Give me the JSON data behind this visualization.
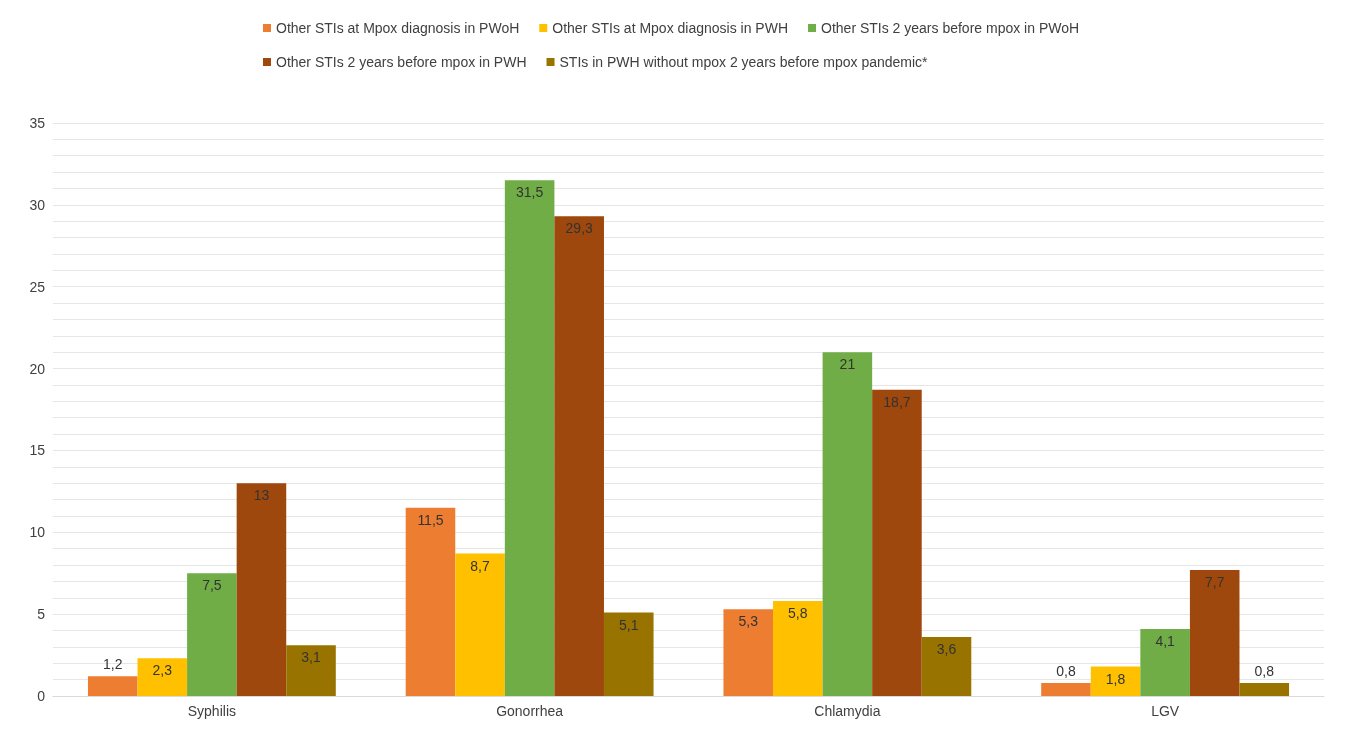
{
  "chart_data": {
    "type": "bar",
    "categories": [
      "Syphilis",
      "Gonorrhea",
      "Chlamydia",
      "LGV"
    ],
    "series": [
      {
        "name": "Other STIs at Mpox diagnosis in PWoH",
        "color": "#ed7d31",
        "values": [
          1.2,
          11.5,
          5.3,
          0.8
        ],
        "value_labels": [
          "1,2",
          "11,5",
          "5,3",
          "0,8"
        ]
      },
      {
        "name": "Other STIs at Mpox diagnosis in PWH",
        "color": "#ffc000",
        "values": [
          2.3,
          8.7,
          5.8,
          1.8
        ],
        "value_labels": [
          "2,3",
          "8,7",
          "5,8",
          "1,8"
        ]
      },
      {
        "name": "Other STIs 2 years before mpox in PWoH",
        "color": "#70ad47",
        "values": [
          7.5,
          31.5,
          21,
          4.1
        ],
        "value_labels": [
          "7,5",
          "31,5",
          "21",
          "4,1"
        ]
      },
      {
        "name": "Other STIs 2 years before mpox in PWH",
        "color": "#9e480e",
        "values": [
          13,
          29.3,
          18.7,
          7.7
        ],
        "value_labels": [
          "13",
          "29,3",
          "18,7",
          "7,7"
        ]
      },
      {
        "name": "STIs in PWH without mpox 2 years before mpox pandemic*",
        "color": "#997300",
        "values": [
          3.1,
          5.1,
          3.6,
          0.8
        ],
        "value_labels": [
          "3,1",
          "5,1",
          "3,6",
          "0,8"
        ]
      }
    ],
    "ylim": [
      0,
      35
    ],
    "yticks": [
      0,
      {
        "value": 1,
        "label": null
      },
      {
        "value": 2,
        "label": null
      },
      {
        "value": 3,
        "label": null
      },
      {
        "value": 4,
        "label": null
      },
      5,
      {
        "value": 6,
        "label": null
      },
      {
        "value": 7,
        "label": null
      },
      {
        "value": 8,
        "label": null
      },
      {
        "value": 9,
        "label": null
      },
      10,
      {
        "value": 11,
        "label": null
      },
      {
        "value": 12,
        "label": null
      },
      {
        "value": 13,
        "label": null
      },
      {
        "value": 14,
        "label": null
      },
      15,
      {
        "value": 16,
        "label": null
      },
      {
        "value": 17,
        "label": null
      },
      {
        "value": 18,
        "label": null
      },
      {
        "value": 19,
        "label": null
      },
      20,
      {
        "value": 21,
        "label": null
      },
      {
        "value": 22,
        "label": null
      },
      {
        "value": 23,
        "label": null
      },
      {
        "value": 24,
        "label": null
      },
      25,
      {
        "value": 26,
        "label": null
      },
      {
        "value": 27,
        "label": null
      },
      {
        "value": 28,
        "label": null
      },
      {
        "value": 29,
        "label": null
      },
      30,
      {
        "value": 31,
        "label": null
      },
      {
        "value": 32,
        "label": null
      },
      {
        "value": 33,
        "label": null
      },
      {
        "value": 34,
        "label": null
      },
      35
    ],
    "grid": "y",
    "legend": "top"
  }
}
